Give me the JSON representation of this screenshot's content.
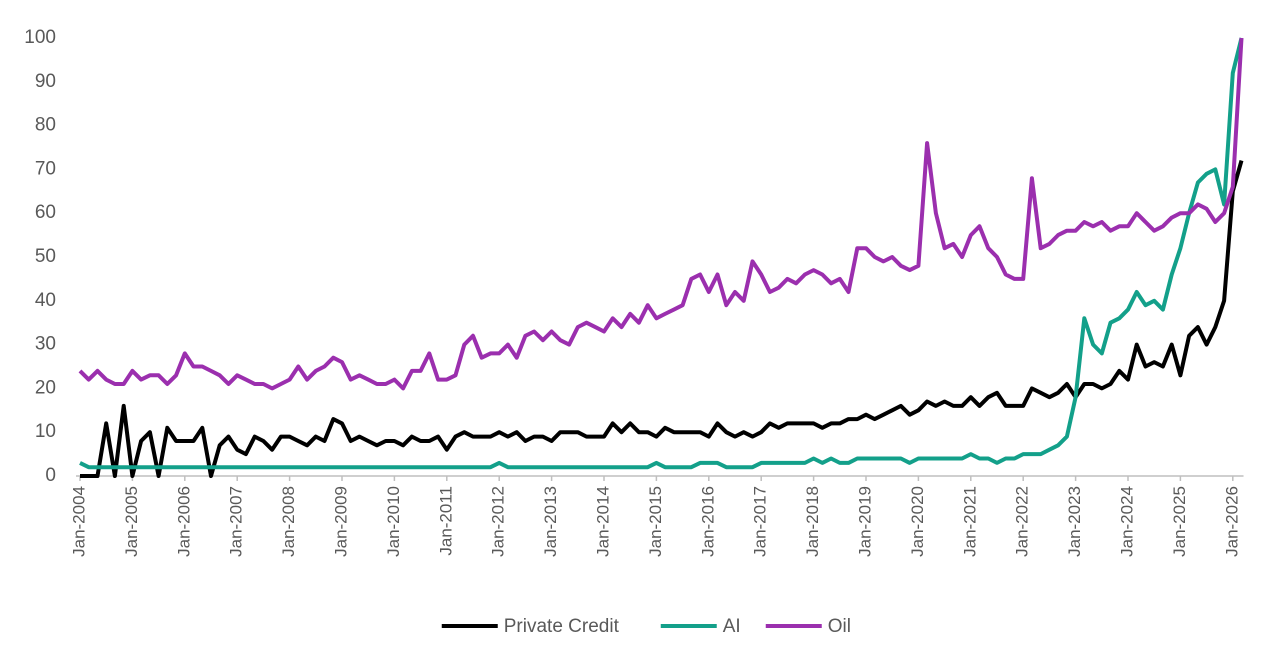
{
  "chart_data": {
    "type": "line",
    "categories": [
      "Jan-2004",
      null,
      null,
      null,
      null,
      null,
      "Jan-2005",
      null,
      null,
      null,
      null,
      null,
      "Jan-2006",
      null,
      null,
      null,
      null,
      null,
      "Jan-2007",
      null,
      null,
      null,
      null,
      null,
      "Jan-2008",
      null,
      null,
      null,
      null,
      null,
      "Jan-2009",
      null,
      null,
      null,
      null,
      null,
      "Jan-2010",
      null,
      null,
      null,
      null,
      null,
      "Jan-2011",
      null,
      null,
      null,
      null,
      null,
      "Jan-2012",
      null,
      null,
      null,
      null,
      null,
      "Jan-2013",
      null,
      null,
      null,
      null,
      null,
      "Jan-2014",
      null,
      null,
      null,
      null,
      null,
      "Jan-2015",
      null,
      null,
      null,
      null,
      null,
      "Jan-2016",
      null,
      null,
      null,
      null,
      null,
      "Jan-2017",
      null,
      null,
      null,
      null,
      null,
      "Jan-2018",
      null,
      null,
      null,
      null,
      null,
      "Jan-2019",
      null,
      null,
      null,
      null,
      null,
      "Jan-2020",
      null,
      null,
      null,
      null,
      null,
      "Jan-2021",
      null,
      null,
      null,
      null,
      null,
      "Jan-2022",
      null,
      null,
      null,
      null,
      null,
      "Jan-2023",
      null,
      null,
      null,
      null,
      null,
      "Jan-2024",
      null,
      null,
      null,
      null,
      null,
      "Jan-2025",
      null,
      null,
      null,
      null,
      null,
      "Jan-2026",
      null
    ],
    "series": [
      {
        "name": "Private Credit",
        "color": "#000000",
        "values": [
          0,
          0,
          0,
          12,
          0,
          16,
          0,
          8,
          10,
          0,
          11,
          8,
          8,
          8,
          11,
          0,
          7,
          9,
          6,
          5,
          9,
          8,
          6,
          9,
          9,
          8,
          7,
          9,
          8,
          13,
          12,
          8,
          9,
          8,
          7,
          8,
          8,
          7,
          9,
          8,
          8,
          9,
          6,
          9,
          10,
          9,
          9,
          9,
          10,
          9,
          10,
          8,
          9,
          9,
          8,
          10,
          10,
          10,
          9,
          9,
          9,
          12,
          10,
          12,
          10,
          10,
          9,
          11,
          10,
          10,
          10,
          10,
          9,
          12,
          10,
          9,
          10,
          9,
          10,
          12,
          11,
          12,
          12,
          12,
          12,
          11,
          12,
          12,
          13,
          13,
          14,
          13,
          14,
          15,
          16,
          14,
          15,
          17,
          16,
          17,
          16,
          16,
          18,
          16,
          18,
          19,
          16,
          16,
          16,
          20,
          19,
          18,
          19,
          21,
          18,
          21,
          21,
          20,
          21,
          24,
          22,
          30,
          25,
          26,
          25,
          30,
          23,
          32,
          34,
          30,
          34,
          40,
          65,
          72
        ]
      },
      {
        "name": "AI",
        "color": "#13a08a",
        "values": [
          3,
          2,
          2,
          2,
          2,
          2,
          2,
          2,
          2,
          2,
          2,
          2,
          2,
          2,
          2,
          2,
          2,
          2,
          2,
          2,
          2,
          2,
          2,
          2,
          2,
          2,
          2,
          2,
          2,
          2,
          2,
          2,
          2,
          2,
          2,
          2,
          2,
          2,
          2,
          2,
          2,
          2,
          2,
          2,
          2,
          2,
          2,
          2,
          3,
          2,
          2,
          2,
          2,
          2,
          2,
          2,
          2,
          2,
          2,
          2,
          2,
          2,
          2,
          2,
          2,
          2,
          3,
          2,
          2,
          2,
          2,
          3,
          3,
          3,
          2,
          2,
          2,
          2,
          3,
          3,
          3,
          3,
          3,
          3,
          4,
          3,
          4,
          3,
          3,
          4,
          4,
          4,
          4,
          4,
          4,
          3,
          4,
          4,
          4,
          4,
          4,
          4,
          5,
          4,
          4,
          3,
          4,
          4,
          5,
          5,
          5,
          6,
          7,
          9,
          18,
          36,
          30,
          28,
          35,
          36,
          38,
          42,
          39,
          40,
          38,
          46,
          52,
          60,
          67,
          69,
          70,
          62,
          92,
          100
        ]
      },
      {
        "name": "Oil",
        "color": "#9b2fae",
        "values": [
          24,
          22,
          24,
          22,
          21,
          21,
          24,
          22,
          23,
          23,
          21,
          23,
          28,
          25,
          25,
          24,
          23,
          21,
          23,
          22,
          21,
          21,
          20,
          21,
          22,
          25,
          22,
          24,
          25,
          27,
          26,
          22,
          23,
          22,
          21,
          21,
          22,
          20,
          24,
          24,
          28,
          22,
          22,
          23,
          30,
          32,
          27,
          28,
          28,
          30,
          27,
          32,
          33,
          31,
          33,
          31,
          30,
          34,
          35,
          34,
          33,
          36,
          34,
          37,
          35,
          39,
          36,
          37,
          38,
          39,
          45,
          46,
          42,
          46,
          39,
          42,
          40,
          49,
          46,
          42,
          43,
          45,
          44,
          46,
          47,
          46,
          44,
          45,
          42,
          52,
          52,
          50,
          49,
          50,
          48,
          47,
          48,
          76,
          60,
          52,
          53,
          50,
          55,
          57,
          52,
          50,
          46,
          45,
          45,
          68,
          52,
          53,
          55,
          56,
          56,
          58,
          57,
          58,
          56,
          57,
          57,
          60,
          58,
          56,
          57,
          59,
          60,
          60,
          62,
          61,
          58,
          60,
          66,
          100
        ]
      }
    ],
    "ylim": [
      0,
      100
    ],
    "yticks": [
      0,
      10,
      20,
      30,
      40,
      50,
      60,
      70,
      80,
      90,
      100
    ]
  }
}
